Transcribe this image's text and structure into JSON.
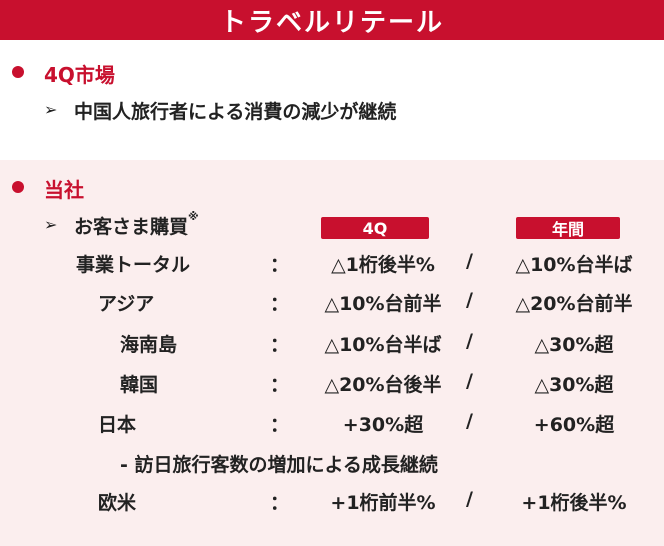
{
  "header": {
    "title": "トラベルリテール"
  },
  "market": {
    "title": "4Q市場",
    "point": "中国人旅行者による消費の減少が継続"
  },
  "company": {
    "title": "当社",
    "subhead": "お客さま購買",
    "note_mark": "※",
    "col_4q": "4Q",
    "col_year": "年間",
    "colon": "：",
    "slash": "/",
    "rows": [
      {
        "label": "事業トータル",
        "q4": "△1桁後半%",
        "year": "△10%台半ば"
      },
      {
        "label": "アジア",
        "q4": "△10%台前半",
        "year": "△20%台前半"
      },
      {
        "label": "海南島",
        "q4": "△10%台半ば",
        "year": "△30%超"
      },
      {
        "label": "韓国",
        "q4": "△20%台後半",
        "year": "△30%超"
      },
      {
        "label": "日本",
        "q4": "+30%超",
        "year": "+60%超"
      },
      {
        "label": "欧米",
        "q4": "+1桁前半%",
        "year": "+1桁後半%"
      }
    ],
    "japan_note": "- 訪日旅行客数の増加による成長継続"
  },
  "icons": {
    "bullet": "●",
    "arrow": "➢"
  },
  "colors": {
    "accent": "#c8102e",
    "panel_bg": "#fbeeee"
  }
}
